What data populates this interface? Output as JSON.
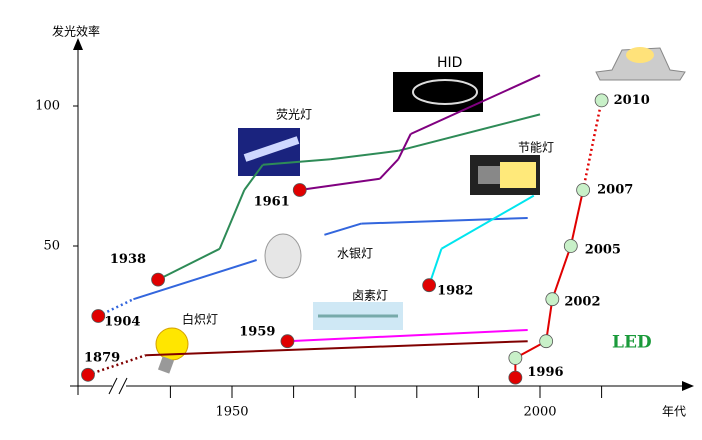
{
  "chart_data": {
    "type": "line",
    "y_label": "发光效率",
    "x_label": "年代",
    "ylim": [
      0,
      120
    ],
    "yticks": [
      50,
      100
    ],
    "xticks": [
      1950,
      2000
    ],
    "xminor": [
      1940,
      1960,
      1970,
      1980,
      1990,
      2010
    ],
    "series": [
      {
        "name": "白炽灯",
        "color": "#800000",
        "x": [
          1879,
          1936,
          1998
        ],
        "values": [
          4,
          11,
          16
        ],
        "dots": [
          0
        ],
        "labeled": [
          0
        ],
        "dotted": [
          0
        ],
        "dot_color": "#e00000"
      },
      {
        "name": "卤素灯",
        "color": "#ff00ff",
        "x": [
          1959,
          1998
        ],
        "values": [
          16,
          20
        ],
        "dots": [
          0
        ],
        "labeled": [
          0
        ],
        "dotted": [],
        "dot_color": "#e00000"
      },
      {
        "name": "荧光灯",
        "color": "#2e8b57",
        "x": [
          1938,
          1948,
          1952,
          1955,
          1966,
          1977,
          2000
        ],
        "values": [
          38,
          49,
          70,
          79,
          81,
          84,
          97
        ],
        "dots": [
          0
        ],
        "labeled": [
          0
        ],
        "dotted": [],
        "dot_color": "#e00000"
      },
      {
        "name": "水银灯",
        "color": "#3366dd",
        "x": [
          1904,
          1934,
          1954,
          1960,
          1965,
          1971,
          1998
        ],
        "values": [
          25,
          31,
          45,
          null,
          54,
          58,
          60
        ],
        "dots": [
          0
        ],
        "labeled": [
          0
        ],
        "dotted": [
          0
        ],
        "dot_color": "#e00000"
      },
      {
        "name": "HID",
        "color": "#800080",
        "x": [
          1961,
          1974,
          1977,
          1979,
          2000
        ],
        "values": [
          70,
          74,
          81,
          90,
          111
        ],
        "dots": [
          0
        ],
        "labeled": [
          0
        ],
        "dotted": [],
        "dot_color": "#e00000"
      },
      {
        "name": "节能灯",
        "color": "#00e5ee",
        "x": [
          1982,
          1984,
          1999
        ],
        "values": [
          36,
          49,
          68
        ],
        "dots": [
          0
        ],
        "labeled": [
          0
        ],
        "dotted": [],
        "dot_color": "#e00000"
      },
      {
        "name": "LED",
        "color": "#e00000",
        "x": [
          1996,
          1996,
          2001,
          2002,
          2005,
          2007,
          2010
        ],
        "values": [
          3,
          10,
          16,
          31,
          50,
          70,
          102
        ],
        "dots": [
          0,
          1,
          2,
          3,
          4,
          5,
          6
        ],
        "labeled": [
          0,
          3,
          4,
          5,
          6
        ],
        "dotted": [
          5
        ],
        "dot_color": [
          "#e00000",
          "#c8f0c8",
          "#c8f0c8",
          "#c8f0c8",
          "#c8f0c8",
          "#c8f0c8",
          "#c8f0c8"
        ]
      }
    ]
  }
}
